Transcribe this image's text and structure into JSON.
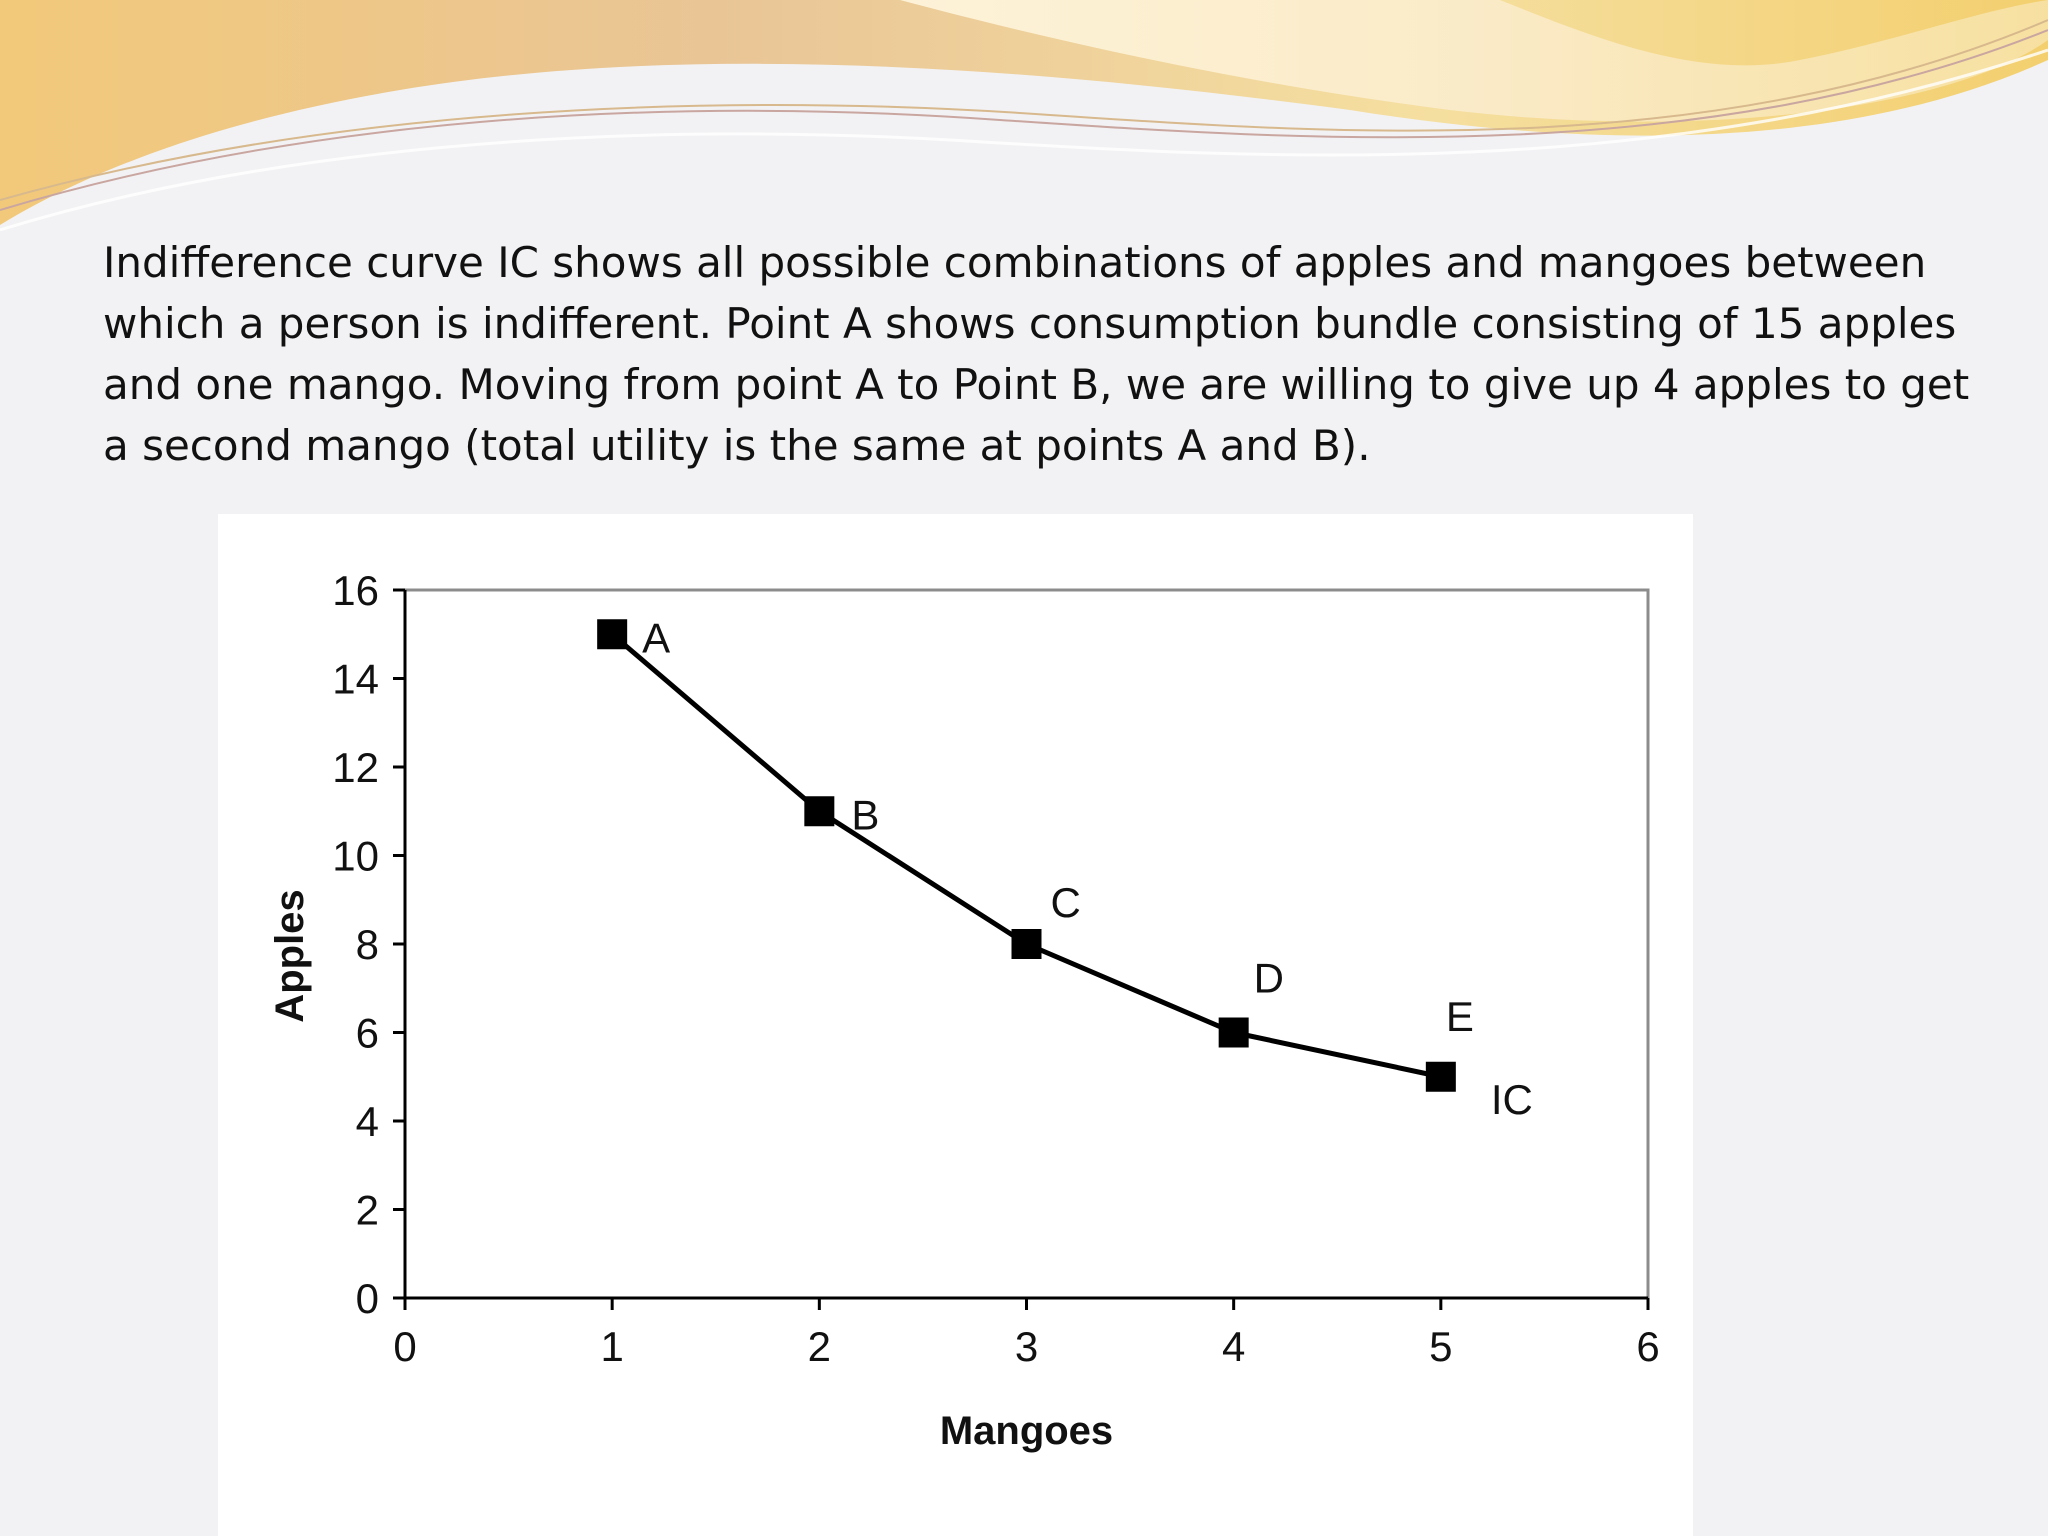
{
  "slide": {
    "paragraph": "Indifference curve IC shows all possible combinations of apples and mangoes between which a person is indifferent. Point A shows consumption bundle consisting of 15 apples and one mango. Moving from point A to Point B, we are willing to give up 4 apples to get a second mango (total utility is the same at points A and B).",
    "background_color": "#f2f2f4",
    "decor_colors": [
      "#e6c58d",
      "#f3d784",
      "#fff3c9"
    ]
  },
  "chart_data": {
    "type": "line",
    "title": "",
    "xlabel": "Mangoes",
    "ylabel": "Apples",
    "xlim": [
      0,
      6
    ],
    "ylim": [
      0,
      16
    ],
    "x_ticks": [
      0,
      1,
      2,
      3,
      4,
      5,
      6
    ],
    "y_ticks": [
      0,
      2,
      4,
      6,
      8,
      10,
      12,
      14,
      16
    ],
    "grid": false,
    "legend": "none",
    "series": [
      {
        "name": "IC",
        "marker": "square",
        "color": "#000000",
        "points": [
          {
            "label": "A",
            "x": 1,
            "y": 15
          },
          {
            "label": "B",
            "x": 2,
            "y": 11
          },
          {
            "label": "C",
            "x": 3,
            "y": 8
          },
          {
            "label": "D",
            "x": 4,
            "y": 6
          },
          {
            "label": "E",
            "x": 5,
            "y": 5
          }
        ]
      }
    ]
  }
}
